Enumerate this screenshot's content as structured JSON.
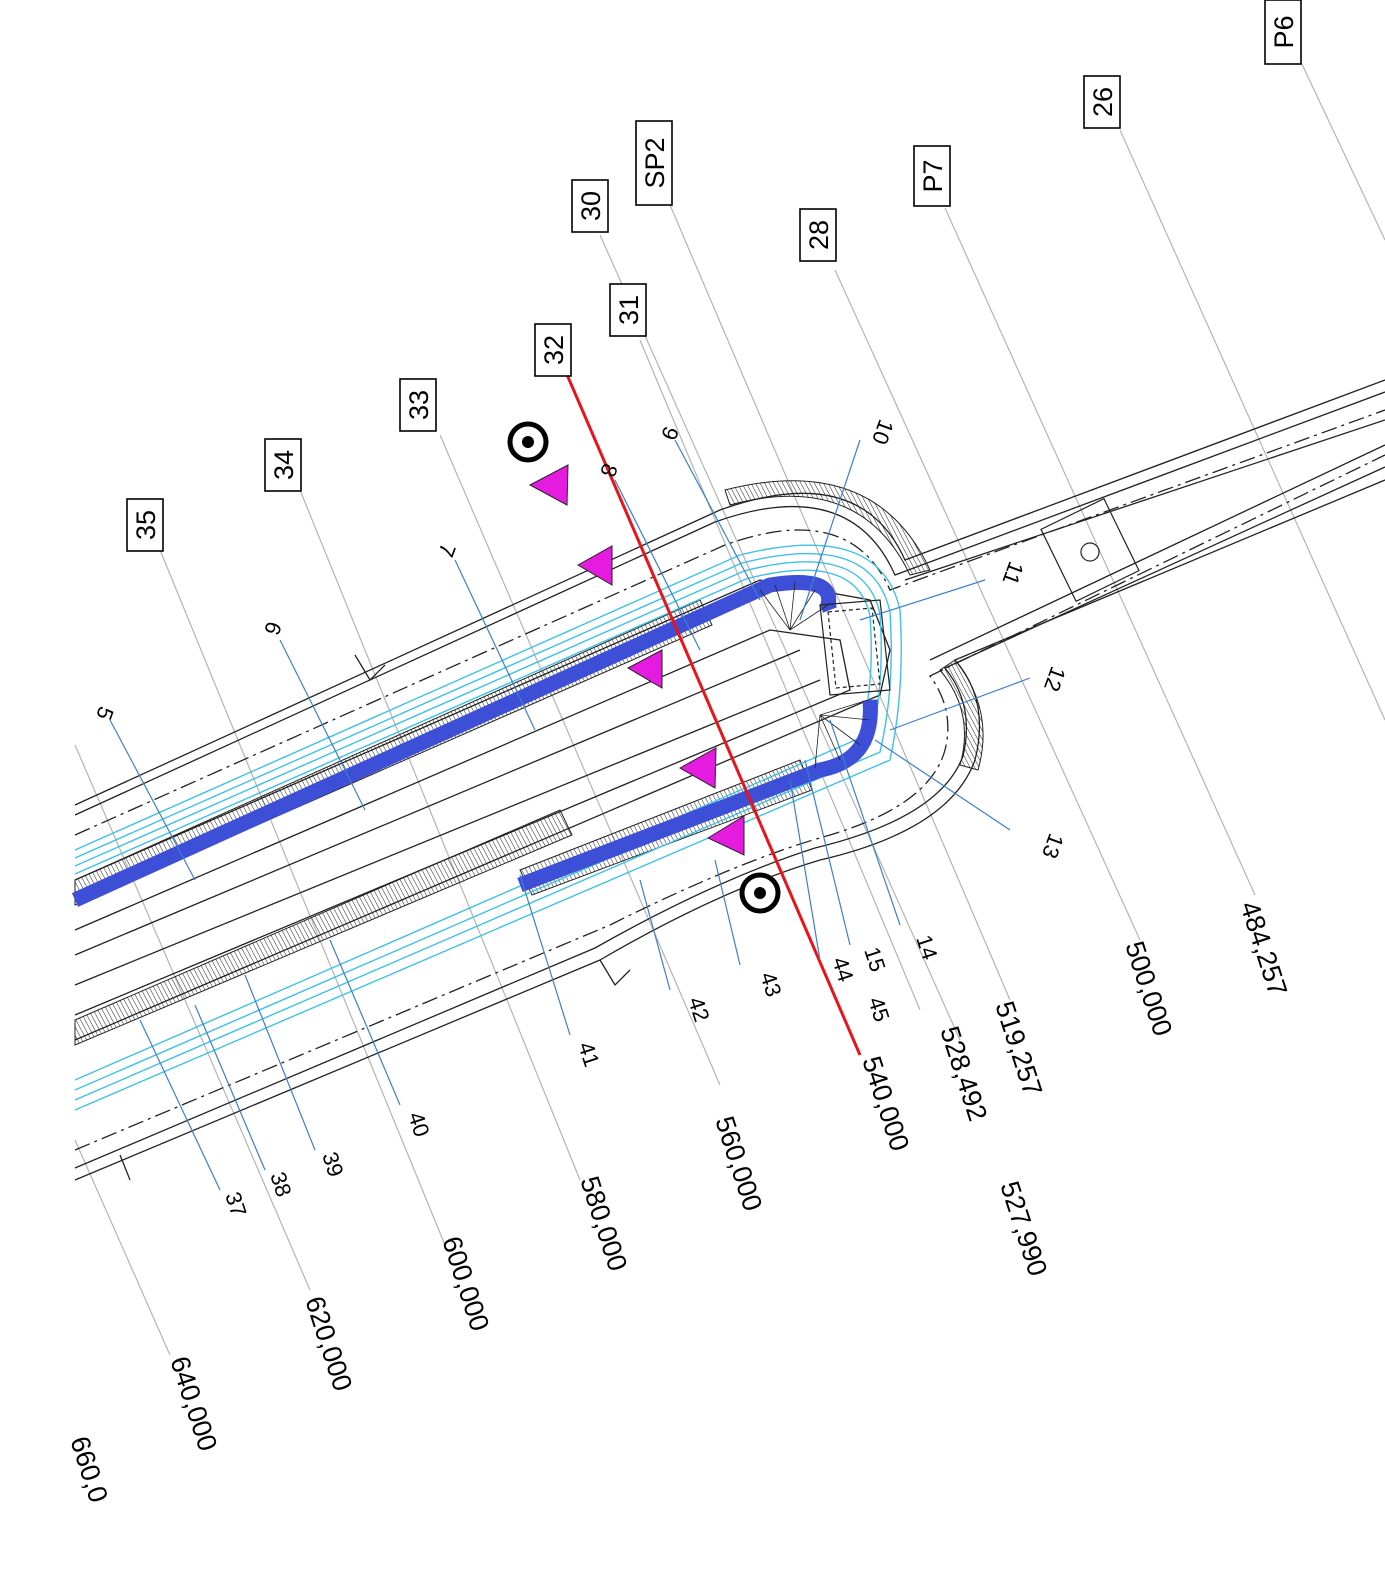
{
  "station_tags": [
    "P6",
    "26",
    "P7",
    "28",
    "SP2",
    "30",
    "31",
    "32",
    "33",
    "34",
    "35"
  ],
  "chainages": [
    "484,257",
    "500,000",
    "519,257",
    "527,990",
    "528,492",
    "540,000",
    "560,000",
    "580,000",
    "600,000",
    "620,000",
    "640,000",
    "660,0"
  ],
  "detail_numbers": [
    "5",
    "6",
    "7",
    "8",
    "9",
    "10",
    "11",
    "12",
    "13",
    "14",
    "15",
    "37",
    "38",
    "39",
    "40",
    "41",
    "42",
    "43",
    "44",
    "45"
  ],
  "colors": {
    "rail_blue": "#3d4fd6",
    "water_cyan": "#3ec1e6",
    "section_red": "#e8141b",
    "marker_magenta": "#e51ce0",
    "leader_grey": "#b4b4b4",
    "leader_blue": "#3b7fd1",
    "linework": "#222222"
  },
  "markers": {
    "flow_arrow_icon": "magenta-triangle",
    "survey_point_icon": "target-circle"
  }
}
